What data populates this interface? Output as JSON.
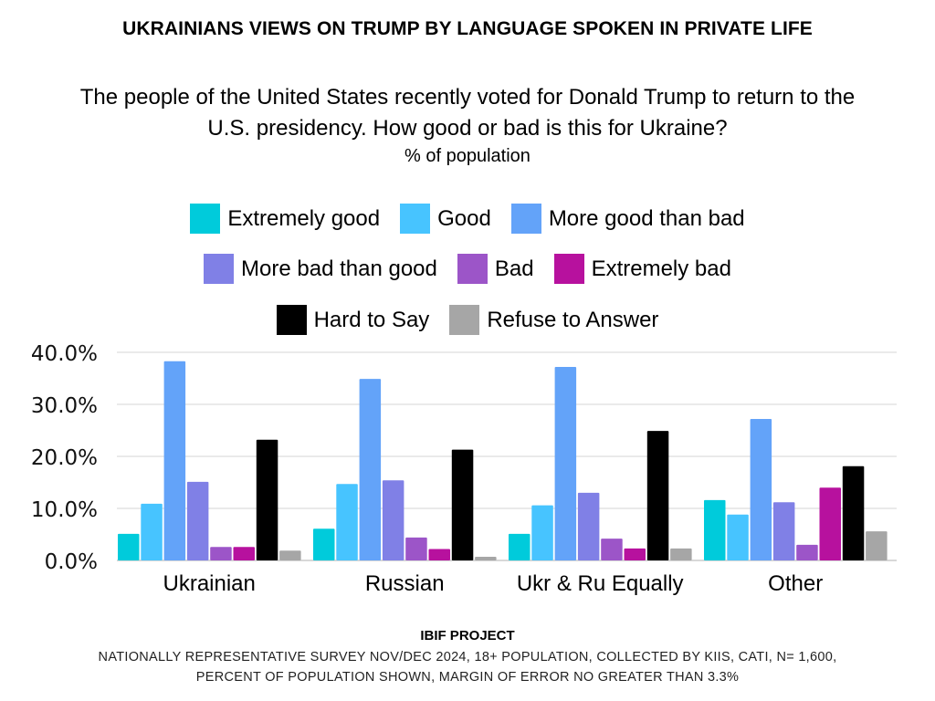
{
  "title": "UKRAINIANS VIEWS ON TRUMP BY LANGUAGE SPOKEN IN PRIVATE LIFE",
  "subtitle_line1": "The people of the United States recently voted for Donald Trump to return to the",
  "subtitle_line2": "U.S. presidency. How good or bad is this for Ukraine?",
  "unit_note": "% of population",
  "legend": {
    "rows": [
      [
        {
          "label": "Extremely good",
          "color": "#00CBDB"
        },
        {
          "label": "Good",
          "color": "#47C4FF"
        },
        {
          "label": "More good than bad",
          "color": "#63A3F9"
        }
      ],
      [
        {
          "label": "More bad than good",
          "color": "#8080E6"
        },
        {
          "label": "Bad",
          "color": "#9C55C8"
        },
        {
          "label": "Extremely bad",
          "color": "#B7119E"
        }
      ],
      [
        {
          "label": "Hard to Say",
          "color": "#000000"
        },
        {
          "label": "Refuse to Answer",
          "color": "#A6A6A6"
        }
      ]
    ]
  },
  "chart_data": {
    "type": "bar",
    "title": "UKRAINIANS VIEWS ON TRUMP BY LANGUAGE SPOKEN IN PRIVATE LIFE",
    "xlabel": "",
    "ylabel": "% of population",
    "categories": [
      "Ukrainian",
      "Russian",
      "Ukr & Ru Equally",
      "Other"
    ],
    "ylim": [
      0,
      40
    ],
    "yticks": [
      0,
      10,
      20,
      30,
      40
    ],
    "ytick_labels": [
      "0.0%",
      "10.0%",
      "20.0%",
      "30.0%",
      "40.0%"
    ],
    "grid": true,
    "legend_position": "top",
    "series": [
      {
        "name": "Extremely good",
        "color": "#00CBDB",
        "values": [
          5.1,
          6.1,
          5.1,
          11.6
        ]
      },
      {
        "name": "Good",
        "color": "#47C4FF",
        "values": [
          10.9,
          14.7,
          10.6,
          8.8
        ]
      },
      {
        "name": "More good than bad",
        "color": "#63A3F9",
        "values": [
          38.3,
          34.9,
          37.2,
          27.2
        ]
      },
      {
        "name": "More bad than good",
        "color": "#8080E6",
        "values": [
          15.1,
          15.4,
          13.0,
          11.2
        ]
      },
      {
        "name": "Bad",
        "color": "#9C55C8",
        "values": [
          2.6,
          4.4,
          4.2,
          3.0
        ]
      },
      {
        "name": "Extremely bad",
        "color": "#B7119E",
        "values": [
          2.6,
          2.2,
          2.3,
          14.0
        ]
      },
      {
        "name": "Hard to Say",
        "color": "#000000",
        "values": [
          23.2,
          21.3,
          24.9,
          18.1
        ]
      },
      {
        "name": "Refuse to Answer",
        "color": "#A6A6A6",
        "values": [
          1.9,
          0.7,
          2.3,
          5.6
        ]
      }
    ]
  },
  "footer": {
    "heading": "IBIF PROJECT",
    "line1": "NATIONALLY REPRESENTATIVE SURVEY NOV/DEC 2024, 18+ POPULATION, COLLECTED BY KIIS, CATI, N= 1,600,",
    "line2": "PERCENT OF POPULATION SHOWN, MARGIN OF ERROR NO GREATER THAN 3.3%"
  }
}
